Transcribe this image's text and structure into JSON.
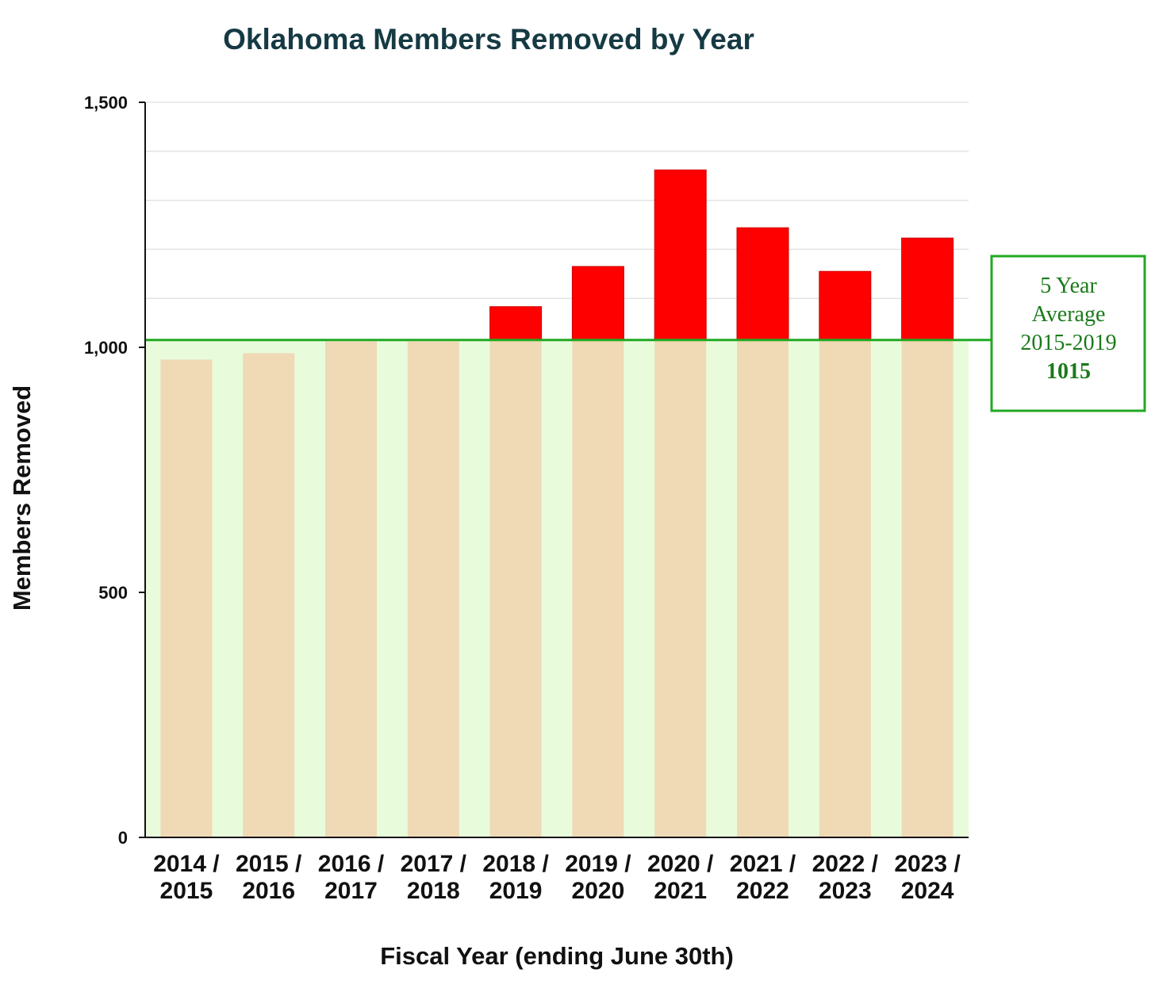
{
  "chart_data": {
    "type": "bar",
    "title": "Oklahoma Members Removed by Year",
    "xlabel": "Fiscal Year (ending June 30th)",
    "ylabel": "Members Removed",
    "ylim": [
      0,
      1500
    ],
    "y_ticks": [
      {
        "value": 0,
        "label": "0"
      },
      {
        "value": 500,
        "label": "500"
      },
      {
        "value": 1000,
        "label": "1,000"
      },
      {
        "value": 1500,
        "label": "1,500"
      }
    ],
    "minor_gridlines_every": 100,
    "categories": [
      {
        "line1": "2014 /",
        "line2": "2015"
      },
      {
        "line1": "2015 /",
        "line2": "2016"
      },
      {
        "line1": "2016 /",
        "line2": "2017"
      },
      {
        "line1": "2017 /",
        "line2": "2018"
      },
      {
        "line1": "2018 /",
        "line2": "2019"
      },
      {
        "line1": "2019 /",
        "line2": "2020"
      },
      {
        "line1": "2020 /",
        "line2": "2021"
      },
      {
        "line1": "2021 /",
        "line2": "2022"
      },
      {
        "line1": "2022 /",
        "line2": "2023"
      },
      {
        "line1": "2023 /",
        "line2": "2024"
      }
    ],
    "values": [
      975,
      988,
      1012,
      1012,
      1083,
      1165,
      1362,
      1244,
      1155,
      1223
    ],
    "reference_line": {
      "value": 1015,
      "label_lines": [
        "5 Year",
        "Average",
        "2015-2019"
      ],
      "value_label": "1015"
    },
    "colors": {
      "below_average_fill": "#f0d9b5",
      "above_average_fill": "#ff0000",
      "band_fill": "#e8fcdc",
      "reference_line": "#22a822",
      "label_text": "#1a7a1a",
      "title": "#163a44"
    }
  }
}
